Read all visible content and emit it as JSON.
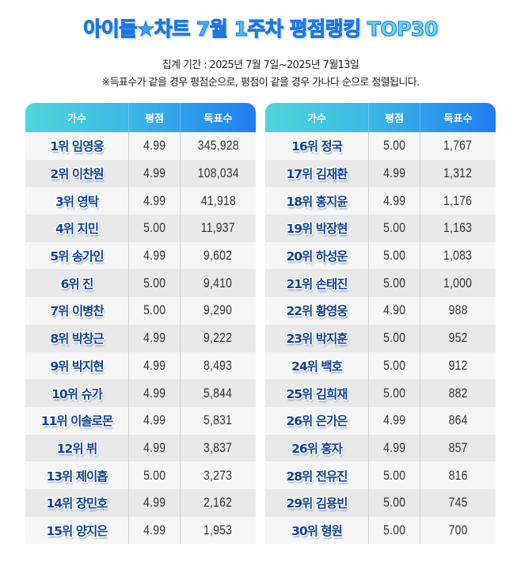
{
  "title": "아이돌★차트 7월 1주차 평점랭킹 TOP30",
  "period": "집계 기간 : 2025년 7월 7일~2025년 7월13일",
  "note": "※득표수가 같을 경우 평점순으로, 평점이 같을 경우 가나다 순으로 정렬됩니다.",
  "colors": {
    "header_gradient_start": "#4fd6dc",
    "header_gradient_end": "#1f7df2",
    "name_text": "#15418f",
    "row_light": "#f6f6f6",
    "row_dark": "#e9e9e9"
  },
  "headers": {
    "artist": "가수",
    "rating": "평점",
    "votes": "득표수"
  },
  "left_table": [
    {
      "rank_name": "1위 임영웅",
      "rating": "4.99",
      "votes": "345,928"
    },
    {
      "rank_name": "2위 이찬원",
      "rating": "4.99",
      "votes": "108,034"
    },
    {
      "rank_name": "3위 영탁",
      "rating": "4.99",
      "votes": "41,918"
    },
    {
      "rank_name": "4위 지민",
      "rating": "5.00",
      "votes": "11,937"
    },
    {
      "rank_name": "5위 송가인",
      "rating": "4.99",
      "votes": "9,602"
    },
    {
      "rank_name": "6위 진",
      "rating": "5.00",
      "votes": "9,410"
    },
    {
      "rank_name": "7위 이병찬",
      "rating": "5.00",
      "votes": "9,290"
    },
    {
      "rank_name": "8위 박창근",
      "rating": "4.99",
      "votes": "9,222"
    },
    {
      "rank_name": "9위 박지현",
      "rating": "4.99",
      "votes": "8,493"
    },
    {
      "rank_name": "10위 슈가",
      "rating": "4.99",
      "votes": "5,844"
    },
    {
      "rank_name": "11위 이솔로몬",
      "rating": "4.99",
      "votes": "5,831"
    },
    {
      "rank_name": "12위 뷔",
      "rating": "4.99",
      "votes": "3,837"
    },
    {
      "rank_name": "13위 제이홉",
      "rating": "5.00",
      "votes": "3,273"
    },
    {
      "rank_name": "14위 장민호",
      "rating": "4.99",
      "votes": "2,162"
    },
    {
      "rank_name": "15위 양지은",
      "rating": "4.99",
      "votes": "1,953"
    }
  ],
  "right_table": [
    {
      "rank_name": "16위 정국",
      "rating": "5.00",
      "votes": "1,767"
    },
    {
      "rank_name": "17위 김재환",
      "rating": "4.99",
      "votes": "1,312"
    },
    {
      "rank_name": "18위 홍지윤",
      "rating": "4.99",
      "votes": "1,176"
    },
    {
      "rank_name": "19위 박장현",
      "rating": "5.00",
      "votes": "1,163"
    },
    {
      "rank_name": "20위 하성운",
      "rating": "5.00",
      "votes": "1,083"
    },
    {
      "rank_name": "21위 손태진",
      "rating": "5.00",
      "votes": "1,000"
    },
    {
      "rank_name": "22위 황영웅",
      "rating": "4.90",
      "votes": "988"
    },
    {
      "rank_name": "23위 박지훈",
      "rating": "5.00",
      "votes": "952"
    },
    {
      "rank_name": "24위 백호",
      "rating": "5.00",
      "votes": "912"
    },
    {
      "rank_name": "25위 김희재",
      "rating": "5.00",
      "votes": "882"
    },
    {
      "rank_name": "26위 은가은",
      "rating": "4.99",
      "votes": "864"
    },
    {
      "rank_name": "26위 홍자",
      "rating": "4.99",
      "votes": "857"
    },
    {
      "rank_name": "28위 전유진",
      "rating": "5.00",
      "votes": "816"
    },
    {
      "rank_name": "29위 김용빈",
      "rating": "5.00",
      "votes": "745"
    },
    {
      "rank_name": "30위 형원",
      "rating": "5.00",
      "votes": "700"
    }
  ]
}
